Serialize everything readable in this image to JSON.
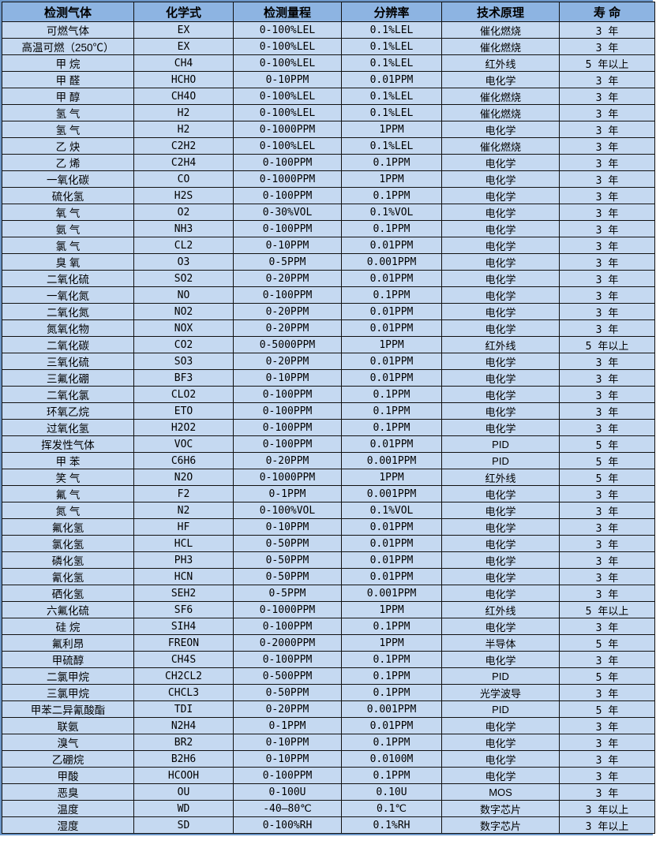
{
  "colors": {
    "header_bg": "#8db4e2",
    "row_bg": "#c5d9f1",
    "outer_border": "#6b96c8",
    "grid_line": "#111111",
    "text": "#000000"
  },
  "table": {
    "headers": [
      "检测气体",
      "化学式",
      "检测量程",
      "分辨率",
      "技术原理",
      "寿 命"
    ],
    "rows": [
      [
        "可燃气体",
        "EX",
        "0-100%LEL",
        "0.1%LEL",
        "催化燃烧",
        "3 年"
      ],
      [
        "高温可燃（250℃）",
        "EX",
        "0-100%LEL",
        "0.1%LEL",
        "催化燃烧",
        "3 年"
      ],
      [
        "甲 烷",
        "CH4",
        "0-100%LEL",
        "0.1%LEL",
        "红外线",
        "5 年以上"
      ],
      [
        "甲 醛",
        "HCHO",
        "0-10PPM",
        "0.01PPM",
        "电化学",
        "3 年"
      ],
      [
        "甲 醇",
        "CH4O",
        "0-100%LEL",
        "0.1%LEL",
        "催化燃烧",
        "3 年"
      ],
      [
        "氢 气",
        "H2",
        "0-100%LEL",
        "0.1%LEL",
        "催化燃烧",
        "3 年"
      ],
      [
        "氢 气",
        "H2",
        "0-1000PPM",
        "1PPM",
        "电化学",
        "3 年"
      ],
      [
        "乙 炔",
        "C2H2",
        "0-100%LEL",
        "0.1%LEL",
        "催化燃烧",
        "3 年"
      ],
      [
        "乙 烯",
        "C2H4",
        "0-100PPM",
        "0.1PPM",
        "电化学",
        "3 年"
      ],
      [
        "一氧化碳",
        "CO",
        "0-1000PPM",
        "1PPM",
        "电化学",
        "3 年"
      ],
      [
        "硫化氢",
        "H2S",
        "0-100PPM",
        "0.1PPM",
        "电化学",
        "3 年"
      ],
      [
        "氧 气",
        "O2",
        "0-30%VOL",
        "0.1%VOL",
        "电化学",
        "3 年"
      ],
      [
        "氨 气",
        "NH3",
        "0-100PPM",
        "0.1PPM",
        "电化学",
        "3 年"
      ],
      [
        "氯 气",
        "CL2",
        "0-10PPM",
        "0.01PPM",
        "电化学",
        "3 年"
      ],
      [
        "臭 氧",
        "O3",
        "0-5PPM",
        "0.001PPM",
        "电化学",
        "3 年"
      ],
      [
        "二氧化硫",
        "SO2",
        "0-20PPM",
        "0.01PPM",
        "电化学",
        "3 年"
      ],
      [
        "一氧化氮",
        "NO",
        "0-100PPM",
        "0.1PPM",
        "电化学",
        "3 年"
      ],
      [
        "二氧化氮",
        "NO2",
        "0-20PPM",
        "0.01PPM",
        "电化学",
        "3 年"
      ],
      [
        "氮氧化物",
        "NOX",
        "0-20PPM",
        "0.01PPM",
        "电化学",
        "3 年"
      ],
      [
        "二氧化碳",
        "CO2",
        "0-5000PPM",
        "1PPM",
        "红外线",
        "5 年以上"
      ],
      [
        "三氧化硫",
        "SO3",
        "0-20PPM",
        "0.01PPM",
        "电化学",
        "3 年"
      ],
      [
        "三氟化硼",
        "BF3",
        "0-10PPM",
        "0.01PPM",
        "电化学",
        "3 年"
      ],
      [
        "二氧化氯",
        "CLO2",
        "0-100PPM",
        "0.1PPM",
        "电化学",
        "3 年"
      ],
      [
        "环氧乙烷",
        "ETO",
        "0-100PPM",
        "0.1PPM",
        "电化学",
        "3 年"
      ],
      [
        "过氧化氢",
        "H2O2",
        "0-100PPM",
        "0.1PPM",
        "电化学",
        "3 年"
      ],
      [
        "挥发性气体",
        "VOC",
        "0-100PPM",
        "0.01PPM",
        "PID",
        "5 年"
      ],
      [
        "甲 苯",
        "C6H6",
        "0-20PPM",
        "0.001PPM",
        "PID",
        "5 年"
      ],
      [
        "笑 气",
        "N2O",
        "0-1000PPM",
        "1PPM",
        "红外线",
        "5 年"
      ],
      [
        "氟 气",
        "F2",
        "0-1PPM",
        "0.001PPM",
        "电化学",
        "3 年"
      ],
      [
        "氮 气",
        "N2",
        "0-100%VOL",
        "0.1%VOL",
        "电化学",
        "3 年"
      ],
      [
        "氟化氢",
        "HF",
        "0-10PPM",
        "0.01PPM",
        "电化学",
        "3 年"
      ],
      [
        "氯化氢",
        "HCL",
        "0-50PPM",
        "0.01PPM",
        "电化学",
        "3 年"
      ],
      [
        "磷化氢",
        "PH3",
        "0-50PPM",
        "0.01PPM",
        "电化学",
        "3 年"
      ],
      [
        "氰化氢",
        "HCN",
        "0-50PPM",
        "0.01PPM",
        "电化学",
        "3 年"
      ],
      [
        "硒化氢",
        "SEH2",
        "0-5PPM",
        "0.001PPM",
        "电化学",
        "3 年"
      ],
      [
        "六氟化硫",
        "SF6",
        "0-1000PPM",
        "1PPM",
        "红外线",
        "5 年以上"
      ],
      [
        "硅 烷",
        "SIH4",
        "0-100PPM",
        "0.1PPM",
        "电化学",
        "3 年"
      ],
      [
        "氟利昂",
        "FREON",
        "0-2000PPM",
        "1PPM",
        "半导体",
        "5 年"
      ],
      [
        "甲硫醇",
        "CH4S",
        "0-100PPM",
        "0.1PPM",
        "电化学",
        "3 年"
      ],
      [
        "二氯甲烷",
        "CH2CL2",
        "0-500PPM",
        "0.1PPM",
        "PID",
        "5 年"
      ],
      [
        "三氯甲烷",
        "CHCL3",
        "0-50PPM",
        "0.1PPM",
        "光学波导",
        "3 年"
      ],
      [
        "甲苯二异氰酸酯",
        "TDI",
        "0-20PPM",
        "0.001PPM",
        "PID",
        "5 年"
      ],
      [
        "联氨",
        "N2H4",
        "0-1PPM",
        "0.01PPM",
        "电化学",
        "3 年"
      ],
      [
        "溴气",
        "BR2",
        "0-10PPM",
        "0.1PPM",
        "电化学",
        "3 年"
      ],
      [
        "乙硼烷",
        "B2H6",
        "0-10PPM",
        "0.0100M",
        "电化学",
        "3 年"
      ],
      [
        "甲酸",
        "HCOOH",
        "0-100PPM",
        "0.1PPM",
        "电化学",
        "3 年"
      ],
      [
        "恶臭",
        "OU",
        "0-100U",
        "0.10U",
        "MOS",
        "3 年"
      ],
      [
        "温度",
        "WD",
        "-40—80℃",
        "0.1℃",
        "数字芯片",
        "3 年以上"
      ],
      [
        "湿度",
        "SD",
        "0-100%RH",
        "0.1%RH",
        "数字芯片",
        "3 年以上"
      ]
    ]
  }
}
